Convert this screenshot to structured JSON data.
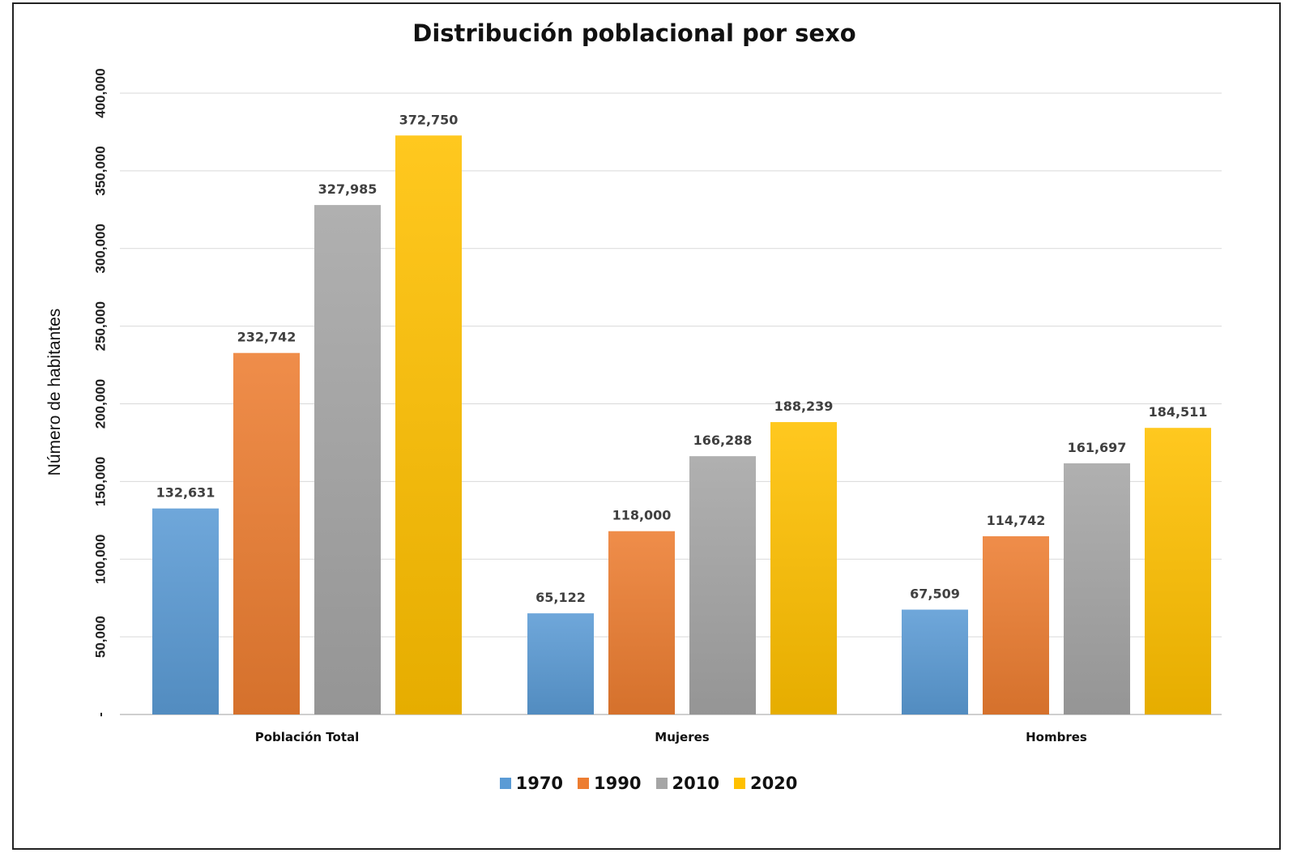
{
  "chart_data": {
    "type": "bar",
    "title": "Distribución poblacional por sexo",
    "xlabel": "",
    "ylabel": "Número de habitantes",
    "ylim": [
      0,
      400000
    ],
    "yticks": [
      0,
      50000,
      100000,
      150000,
      200000,
      250000,
      300000,
      350000,
      400000
    ],
    "ytick_labels": [
      "-",
      "50,000",
      "100,000",
      "150,000",
      "200,000",
      "250,000",
      "300,000",
      "350,000",
      "400,000"
    ],
    "categories": [
      "Población Total",
      "Mujeres",
      "Hombres"
    ],
    "series": [
      {
        "name": "1970",
        "values": [
          132631,
          65122,
          67509
        ],
        "labels": [
          "132,631",
          "65,122",
          "67,509"
        ],
        "color": "#5B9BD5"
      },
      {
        "name": "1990",
        "values": [
          232742,
          118000,
          114742
        ],
        "labels": [
          "232,742",
          "118,000",
          "114,742"
        ],
        "color": "#ED7D31"
      },
      {
        "name": "2010",
        "values": [
          327985,
          166288,
          161697
        ],
        "labels": [
          "327,985",
          "166,288",
          "161,697"
        ],
        "color": "#A5A5A5"
      },
      {
        "name": "2020",
        "values": [
          372750,
          188239,
          184511
        ],
        "labels": [
          "372,750",
          "188,239",
          "184,511"
        ],
        "color": "#FFC000"
      }
    ],
    "grid": true,
    "legend_position": "bottom"
  }
}
